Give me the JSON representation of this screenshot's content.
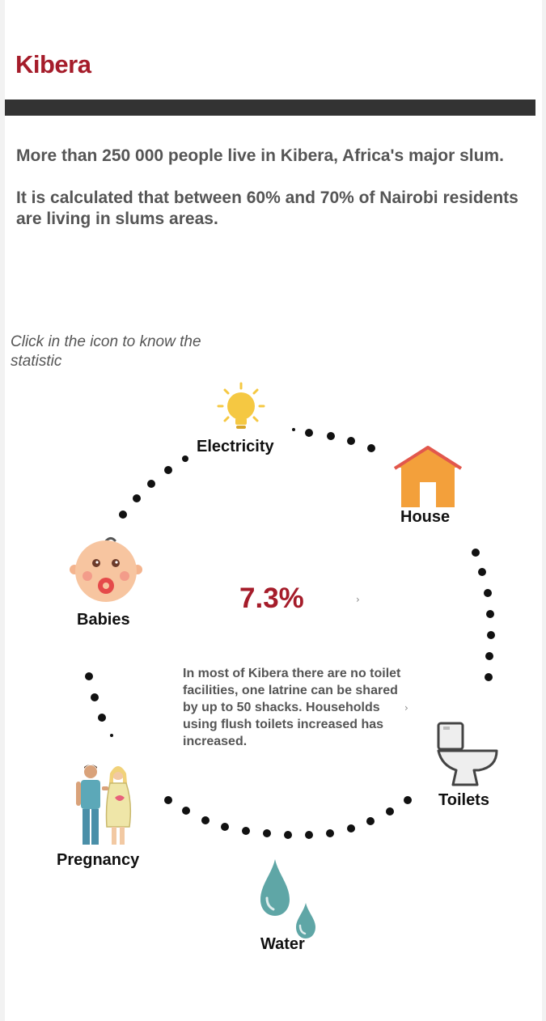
{
  "page": {
    "title": "Kibera",
    "intro": [
      "More than 250 000 people live in Kibera, Africa's major slum.",
      "It is calculated that between 60% and 70% of Nairobi residents are living in slums areas."
    ],
    "hint": "Click in the icon to know the statistic"
  },
  "icons": {
    "electricity": {
      "label": "Electricity",
      "icon": "lightbulb-icon"
    },
    "house": {
      "label": "House",
      "icon": "house-icon"
    },
    "babies": {
      "label": "Babies",
      "icon": "baby-face-icon"
    },
    "toilets": {
      "label": "Toilets",
      "icon": "toilet-icon"
    },
    "pregnancy": {
      "label": "Pregnancy",
      "icon": "couple-pregnant-icon"
    },
    "water": {
      "label": "Water",
      "icon": "water-drops-icon"
    }
  },
  "stat": {
    "value": "7.3%",
    "description": "In most of Kibera there are no toilet facilities, one latrine can be shared by up to 50 shacks. Households using flush toilets increased has increased."
  },
  "colors": {
    "accent": "#a51c2a",
    "text_gray": "#555555",
    "bar": "#333333"
  }
}
